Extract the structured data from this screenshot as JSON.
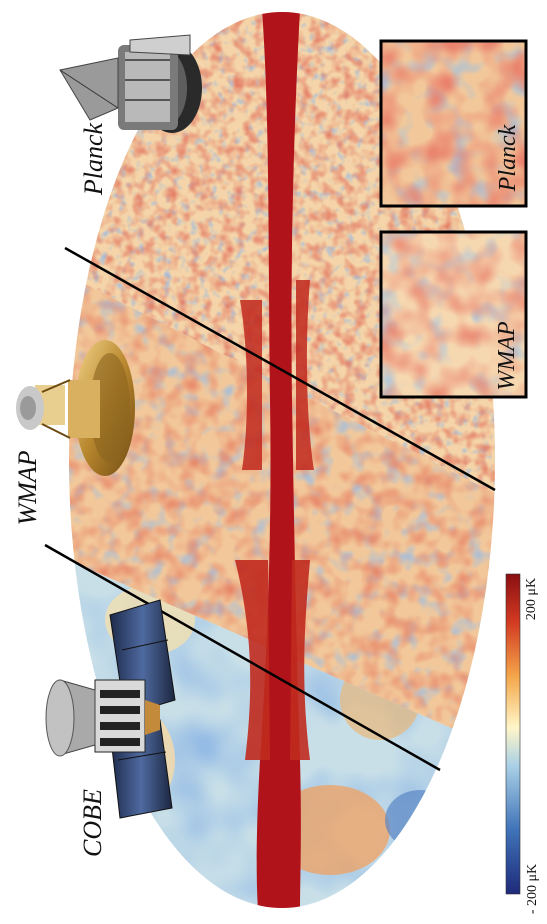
{
  "labels": {
    "cobe": "COBE",
    "wmap": "WMAP",
    "planck": "Planck",
    "inset_wmap": "WMAP",
    "inset_planck": "Planck"
  },
  "colorbar": {
    "min_label": "- 200 μK",
    "max_label": "200 μK",
    "colors": [
      "#1e2a7a",
      "#3f73b8",
      "#a9d0e6",
      "#fff6c8",
      "#f4a64a",
      "#d23a22",
      "#8a0f12"
    ]
  },
  "map_colors": {
    "galaxy": "#b0141a",
    "red": "#c8321f",
    "orange": "#ee8a45",
    "cream": "#fbe6bb",
    "lightblue": "#bcdbe9",
    "blue": "#4b7fc0"
  }
}
